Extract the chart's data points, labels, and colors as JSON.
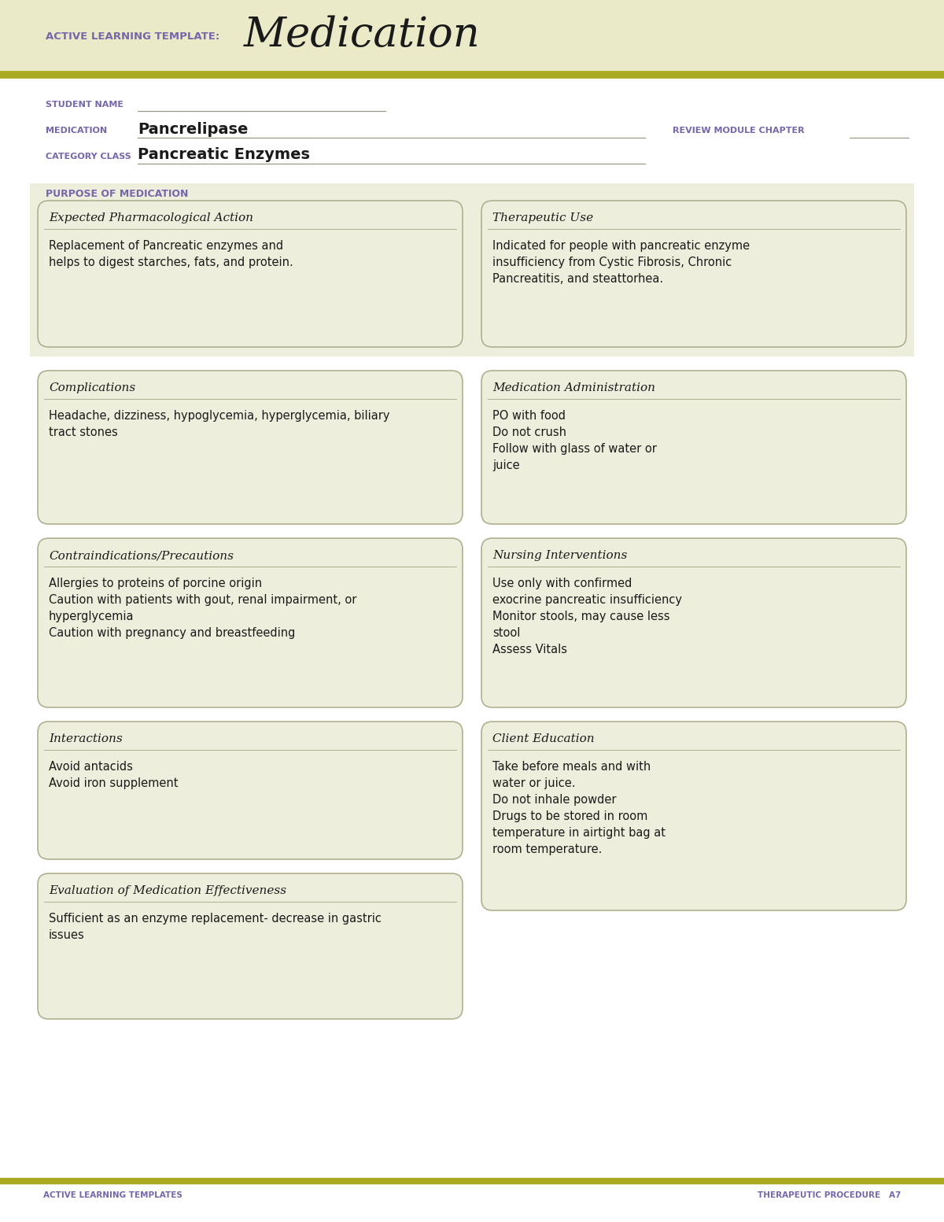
{
  "white": "#ffffff",
  "header_bg": "#eaeac8",
  "box_bg": "#eeeedd",
  "box_bg_white": "#fafaf0",
  "box_border": "#b0b090",
  "olive_line": "#aaaa22",
  "purple_text": "#7766aa",
  "dark_text": "#1a1a1a",
  "label_color": "#7766aa",
  "gray_line": "#999988",
  "title_label": "ACTIVE LEARNING TEMPLATE:",
  "title_main": "Medication",
  "student_name_label": "STUDENT NAME",
  "medication_label": "MEDICATION",
  "medication_value": "Pancrelipase",
  "review_label": "REVIEW MODULE CHAPTER",
  "category_label": "CATEGORY CLASS",
  "category_value": "Pancreatic Enzymes",
  "purpose_label": "PURPOSE OF MEDICATION",
  "box1_title": "Expected Pharmacological Action",
  "box1_body": "Replacement of Pancreatic enzymes and\nhelps to digest starches, fats, and protein.",
  "box2_title": "Therapeutic Use",
  "box2_body": "Indicated for people with pancreatic enzyme\ninsufficiency from Cystic Fibrosis, Chronic\nPancreatitis, and steattorhea.",
  "box3_title": "Complications",
  "box3_body": "Headache, dizziness, hypoglycemia, hyperglycemia, biliary\ntract stones",
  "box4_title": "Medication Administration",
  "box4_body": "PO with food\nDo not crush\nFollow with glass of water or\njuice",
  "box5_title": "Contraindications/Precautions",
  "box5_body": "Allergies to proteins of porcine origin\nCaution with patients with gout, renal impairment, or\nhyperglycemia\nCaution with pregnancy and breastfeeding",
  "box6_title": "Nursing Interventions",
  "box6_body": "Use only with confirmed\nexocrine pancreatic insufficiency\nMonitor stools, may cause less\nstool\nAssess Vitals",
  "box7_title": "Interactions",
  "box7_body": "Avoid antacids\nAvoid iron supplement",
  "box8_title": "Client Education",
  "box8_body": "Take before meals and with\nwater or juice.\nDo not inhale powder\nDrugs to be stored in room\ntemperature in airtight bag at\nroom temperature.",
  "box9_title": "Evaluation of Medication Effectiveness",
  "box9_body": "Sufficient as an enzyme replacement- decrease in gastric\nissues",
  "footer_left": "ACTIVE LEARNING TEMPLATES",
  "footer_right": "THERAPEUTIC PROCEDURE   A7"
}
